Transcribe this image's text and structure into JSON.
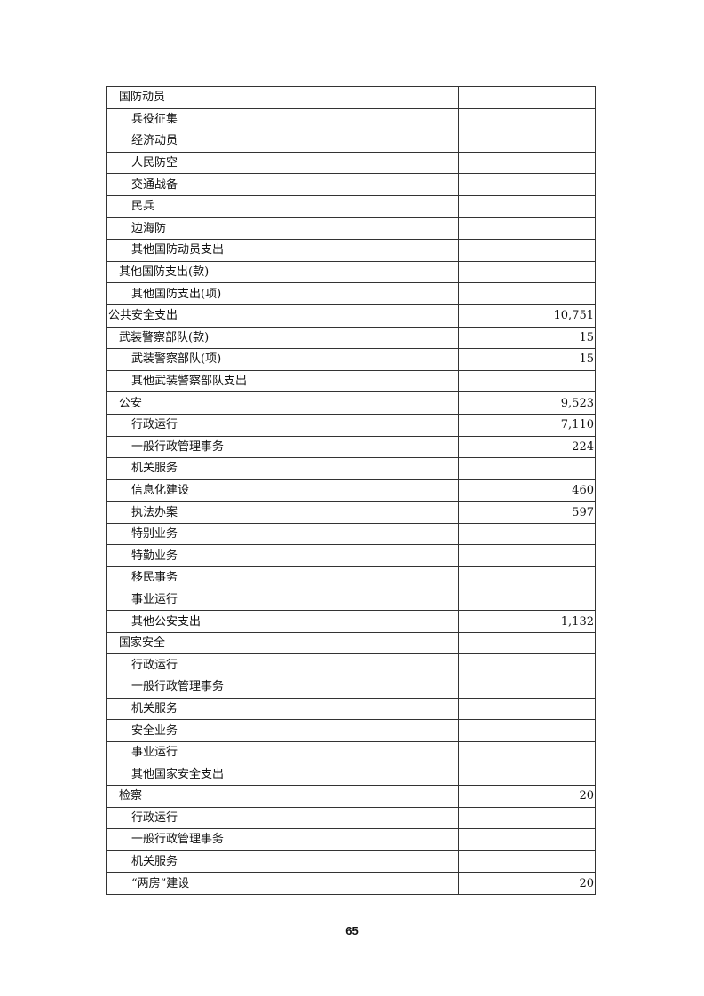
{
  "table": {
    "rows": [
      {
        "name": "国防动员",
        "level": 1,
        "value": ""
      },
      {
        "name": "兵役征集",
        "level": 2,
        "value": ""
      },
      {
        "name": "经济动员",
        "level": 2,
        "value": ""
      },
      {
        "name": "人民防空",
        "level": 2,
        "value": ""
      },
      {
        "name": "交通战备",
        "level": 2,
        "value": ""
      },
      {
        "name": "民兵",
        "level": 2,
        "value": ""
      },
      {
        "name": "边海防",
        "level": 2,
        "value": ""
      },
      {
        "name": "其他国防动员支出",
        "level": 2,
        "value": ""
      },
      {
        "name": "其他国防支出(款)",
        "level": 1,
        "value": ""
      },
      {
        "name": "其他国防支出(项)",
        "level": 2,
        "value": ""
      },
      {
        "name": "公共安全支出",
        "level": 0,
        "value": "10,751"
      },
      {
        "name": "武装警察部队(款)",
        "level": 1,
        "value": "15"
      },
      {
        "name": "武装警察部队(项)",
        "level": 2,
        "value": "15"
      },
      {
        "name": "其他武装警察部队支出",
        "level": 2,
        "value": ""
      },
      {
        "name": "公安",
        "level": 1,
        "value": "9,523"
      },
      {
        "name": "行政运行",
        "level": 2,
        "value": "7,110"
      },
      {
        "name": "一般行政管理事务",
        "level": 2,
        "value": "224"
      },
      {
        "name": "机关服务",
        "level": 2,
        "value": ""
      },
      {
        "name": "信息化建设",
        "level": 2,
        "value": "460"
      },
      {
        "name": "执法办案",
        "level": 2,
        "value": "597"
      },
      {
        "name": "特别业务",
        "level": 2,
        "value": ""
      },
      {
        "name": "特勤业务",
        "level": 2,
        "value": ""
      },
      {
        "name": "移民事务",
        "level": 2,
        "value": ""
      },
      {
        "name": "事业运行",
        "level": 2,
        "value": ""
      },
      {
        "name": "其他公安支出",
        "level": 2,
        "value": "1,132"
      },
      {
        "name": "国家安全",
        "level": 1,
        "value": ""
      },
      {
        "name": "行政运行",
        "level": 2,
        "value": ""
      },
      {
        "name": "一般行政管理事务",
        "level": 2,
        "value": ""
      },
      {
        "name": "机关服务",
        "level": 2,
        "value": ""
      },
      {
        "name": "安全业务",
        "level": 2,
        "value": ""
      },
      {
        "name": "事业运行",
        "level": 2,
        "value": ""
      },
      {
        "name": "其他国家安全支出",
        "level": 2,
        "value": ""
      },
      {
        "name": "检察",
        "level": 1,
        "value": "20"
      },
      {
        "name": "行政运行",
        "level": 2,
        "value": ""
      },
      {
        "name": "一般行政管理事务",
        "level": 2,
        "value": ""
      },
      {
        "name": "机关服务",
        "level": 2,
        "value": ""
      },
      {
        "name": "“两房”建设",
        "level": 2,
        "value": "20"
      }
    ]
  },
  "page_number": "65"
}
